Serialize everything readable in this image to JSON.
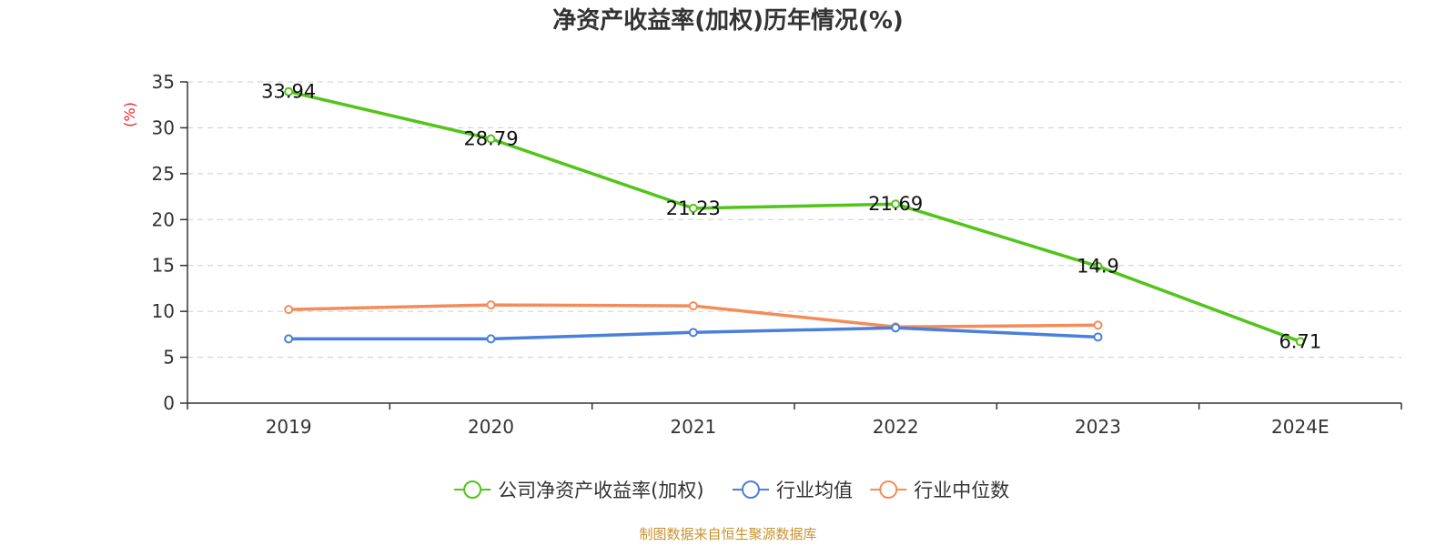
{
  "chart_data": {
    "type": "line",
    "title": "净资产收益率(加权)历年情况(%)",
    "ylabel": "(%)",
    "xlabel": "",
    "categories": [
      "2019",
      "2020",
      "2021",
      "2022",
      "2023",
      "2024E"
    ],
    "ylim": [
      0,
      35
    ],
    "yticks": [
      0,
      5,
      10,
      15,
      20,
      25,
      30,
      35
    ],
    "grid": true,
    "legend_position": "bottom",
    "series": [
      {
        "name": "公司净资产收益率(加权)",
        "color": "#52c41a",
        "values": [
          33.94,
          28.79,
          21.23,
          21.69,
          14.9,
          6.71
        ],
        "data_labels": [
          "33.94",
          "28.79",
          "21.23",
          "21.69",
          "14.9",
          "6.71"
        ]
      },
      {
        "name": "行业均值",
        "color": "#4a7fdc",
        "values": [
          7.0,
          7.0,
          7.7,
          8.2,
          7.2,
          null
        ]
      },
      {
        "name": "行业中位数",
        "color": "#f28c5a",
        "values": [
          10.2,
          10.7,
          10.6,
          8.3,
          8.5,
          null
        ]
      }
    ]
  },
  "source_note": "制图数据来自恒生聚源数据库"
}
